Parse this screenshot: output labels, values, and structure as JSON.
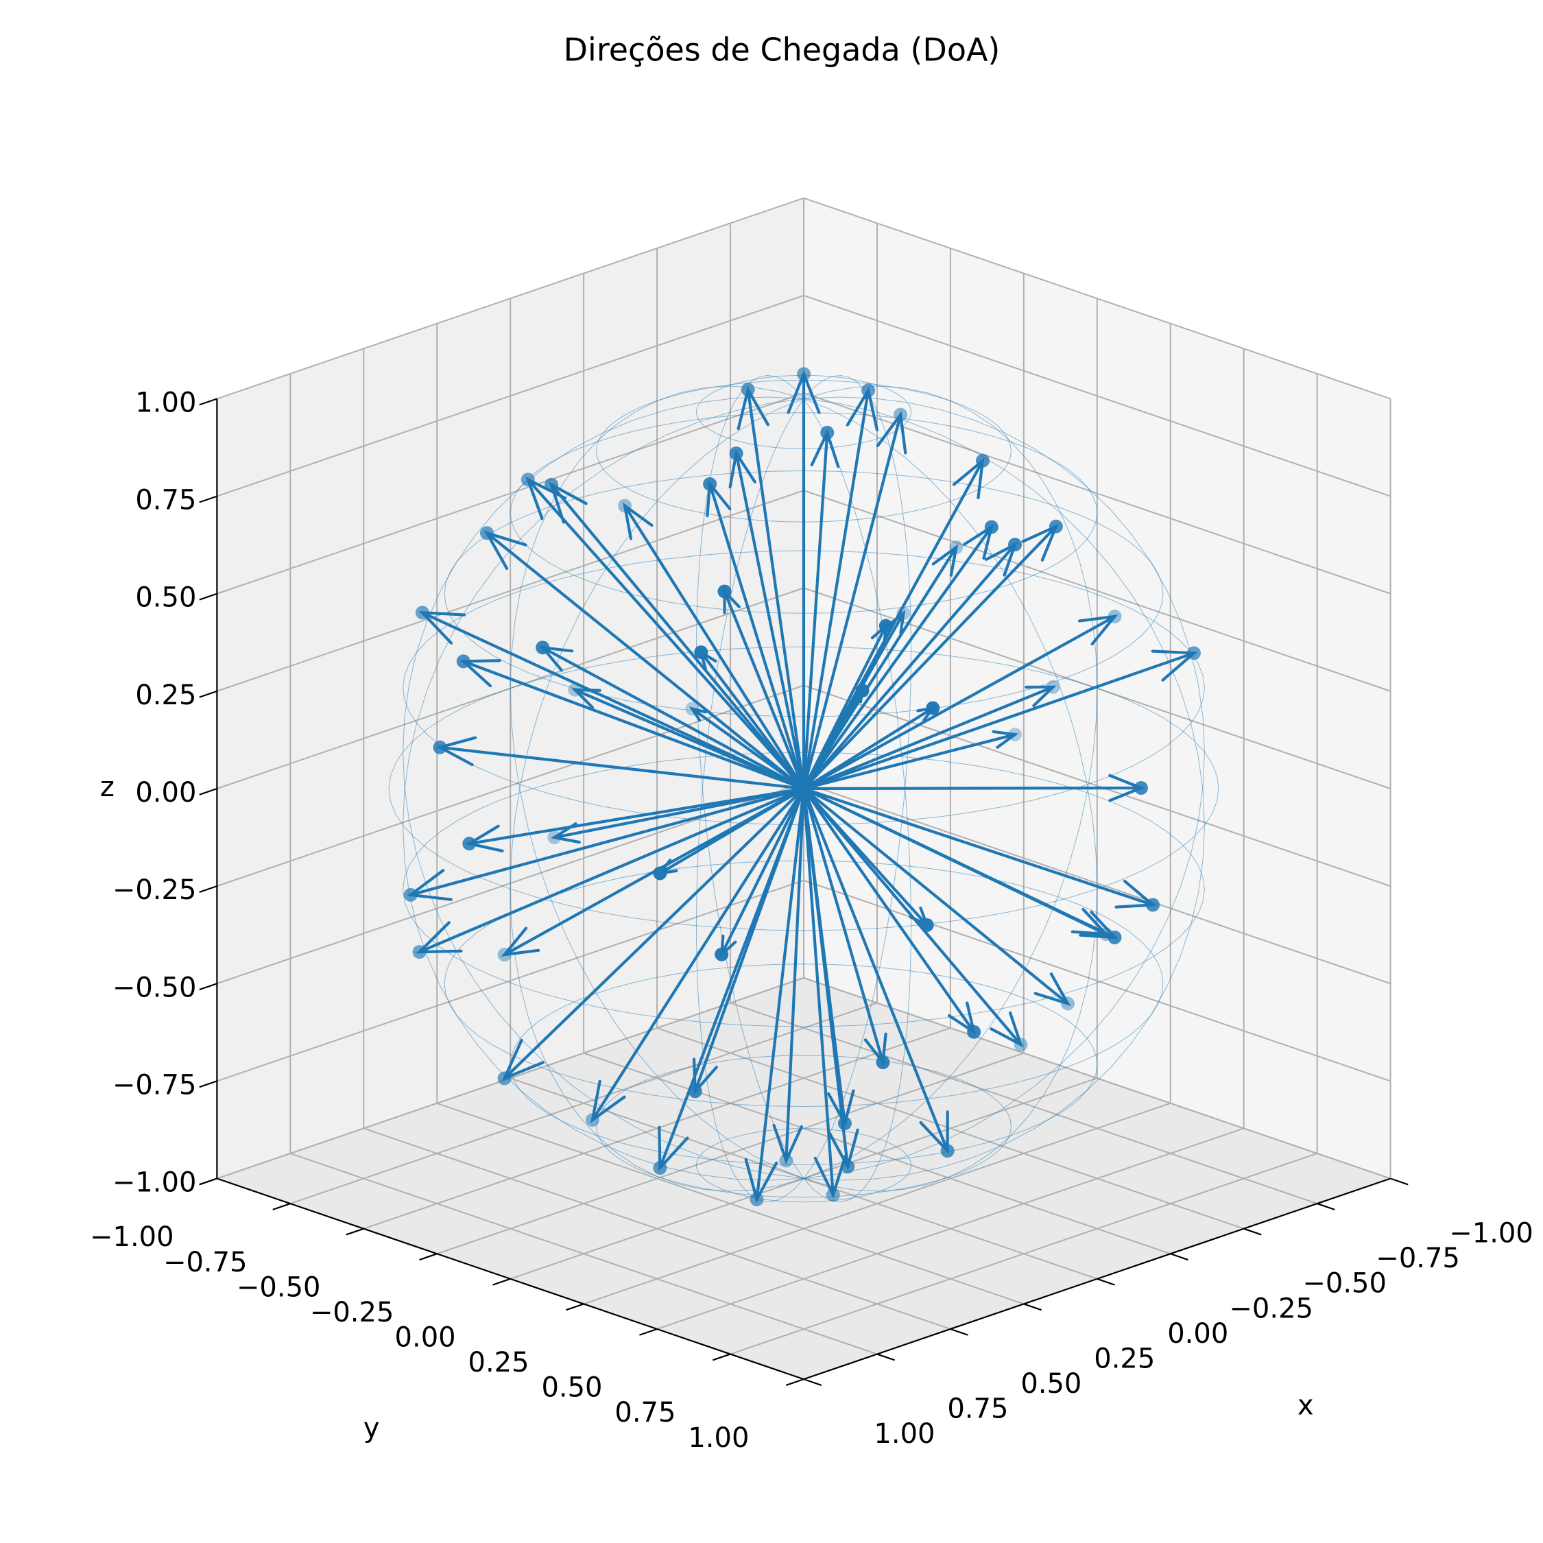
{
  "chart_data": {
    "type": "quiver3d",
    "title": "Direções de Chegada (DoA)",
    "xlabel": "x",
    "ylabel": "y",
    "zlabel": "z",
    "xlim": [
      -1,
      1
    ],
    "ylim": [
      -1,
      1
    ],
    "zlim": [
      -1,
      1
    ],
    "xticks": [
      {
        "value": -1,
        "label": "−1.00"
      },
      {
        "value": -0.75,
        "label": "−0.75"
      },
      {
        "value": -0.5,
        "label": "−0.50"
      },
      {
        "value": -0.25,
        "label": "−0.25"
      },
      {
        "value": 0,
        "label": "0.00"
      },
      0.25,
      {
        "value": 0.5,
        "label": "0.50"
      },
      0.75,
      {
        "value": 1,
        "label": "1.00"
      }
    ],
    "yticks": [
      {
        "value": -1,
        "label": "−1.00"
      },
      {
        "value": -0.75,
        "label": "−0.75"
      },
      {
        "value": -0.5,
        "label": "−0.50"
      },
      {
        "value": -0.25,
        "label": "−0.25"
      },
      {
        "value": 0,
        "label": "0.00"
      },
      0.25,
      {
        "value": 0.5,
        "label": "0.50"
      },
      0.75,
      {
        "value": 1,
        "label": "1.00"
      }
    ],
    "zticks": [
      {
        "value": -1,
        "label": "−1.00"
      },
      {
        "value": -0.75,
        "label": "−0.75"
      },
      {
        "value": -0.5,
        "label": "−0.50"
      },
      {
        "value": -0.25,
        "label": "−0.25"
      },
      {
        "value": 0,
        "label": "0.00"
      },
      0.25,
      {
        "value": 0.5,
        "label": "0.50"
      },
      0.75,
      {
        "value": 1,
        "label": "1.00"
      }
    ],
    "grid": true,
    "sphere_wireframe": true,
    "series": [
      {
        "color": "#1f77b4",
        "x": [
          -0.24,
          0.03,
          -0.21,
          -0.21,
          -0.26,
          -0.68,
          -0.19,
          -0.21,
          -0.08,
          0.32,
          0.2,
          0.41,
          0.32,
          0.6,
          0.71,
          0.75,
          0.83,
          0.98,
          0.9,
          0.82,
          0.55,
          0.49,
          0.29,
          0.45,
          0.29,
          0.41,
          0.59,
          0.83,
          0.9,
          0.83,
          0.78,
          0.47,
          0.35,
          0.37,
          -0.05,
          -0.08,
          0.7,
          0.51,
          0.51,
          -0.82,
          -0.98,
          -0.99,
          -0.96,
          -0.7,
          -0.61,
          -0.2,
          -0.07,
          0.23,
          -0.25,
          -0.85,
          -0.48,
          -0.88,
          -0.04,
          0.07,
          -0.63,
          0.34,
          0.09,
          0.48
        ],
        "y": [
          -0.24,
          -0.16,
          0.01,
          0.4,
          0.6,
          0.65,
          0.96,
          0.98,
          0.98,
          0.9,
          0.69,
          0.56,
          0.16,
          0.11,
          -0.31,
          -0.56,
          -0.51,
          -0.16,
          -0.34,
          -0.34,
          -0.75,
          -0.59,
          -0.65,
          -0.41,
          0.06,
          0.09,
          0.32,
          -0.06,
          0.41,
          0.55,
          0.41,
          0.89,
          0.79,
          0.65,
          0.59,
          0.64,
          0.35,
          0.65,
          0.78,
          0.21,
          0.08,
          -0.14,
          -0.24,
          0.2,
          0.13,
          -0.98,
          -0.92,
          -0.79,
          -0.86,
          -0.51,
          -0.86,
          -0.36,
          -0.1,
          0.17,
          -0.3,
          -0.38,
          0.17,
          0.68
        ],
        "z": [
          0.94,
          0.99,
          0.97,
          0.89,
          0.76,
          0.34,
          0.2,
          -0.1,
          -0.15,
          -0.31,
          -0.7,
          -0.72,
          -0.93,
          -0.79,
          -0.64,
          -0.37,
          -0.19,
          0.07,
          0.25,
          0.45,
          0.4,
          0.63,
          0.7,
          0.79,
          0.95,
          0.91,
          0.74,
          0.56,
          0.12,
          -0.07,
          -0.47,
          0.0,
          0.5,
          0.68,
          0.81,
          0.77,
          0.62,
          -0.56,
          -0.37,
          -0.53,
          0.21,
          -0.03,
          -0.17,
          -0.68,
          -0.78,
          -0.05,
          -0.38,
          -0.57,
          0.44,
          0.1,
          -0.14,
          0.3,
          -0.99,
          -0.98,
          0.72,
          -0.86,
          0.98,
          0.55
        ]
      }
    ]
  }
}
